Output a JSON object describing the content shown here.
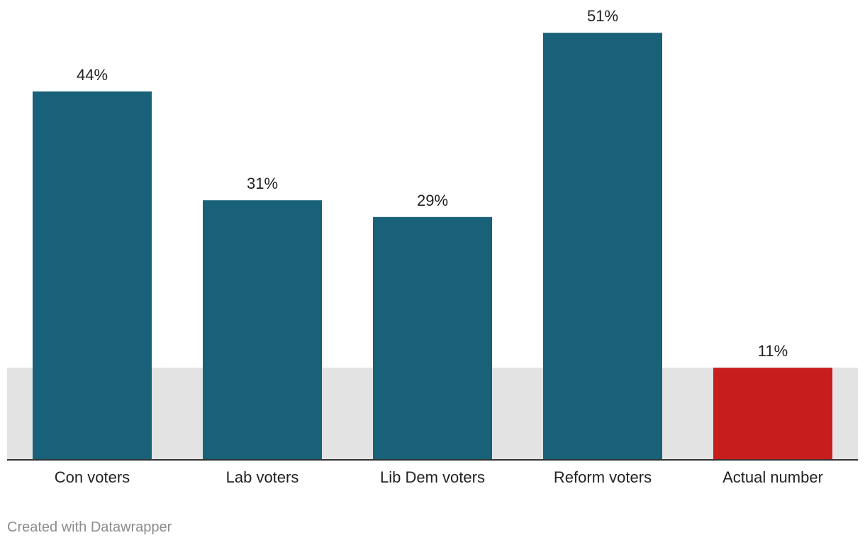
{
  "chart_data": {
    "type": "bar",
    "categories": [
      "Con voters",
      "Lab voters",
      "Lib Dem voters",
      "Reform voters",
      "Actual number"
    ],
    "values": [
      44,
      31,
      29,
      51,
      11
    ],
    "value_labels": [
      "44%",
      "31%",
      "29%",
      "51%",
      "11%"
    ],
    "highlight_range": [
      0,
      11
    ],
    "ylim": [
      0,
      51
    ],
    "grid": false,
    "colors": {
      "bar": "#186179",
      "highlight_bar": "#c71e1d",
      "highlight_band": "#e3e3e3",
      "baseline": "#333333"
    },
    "highlight_category": "Actual number"
  },
  "footer": {
    "credit": "Created with Datawrapper"
  }
}
